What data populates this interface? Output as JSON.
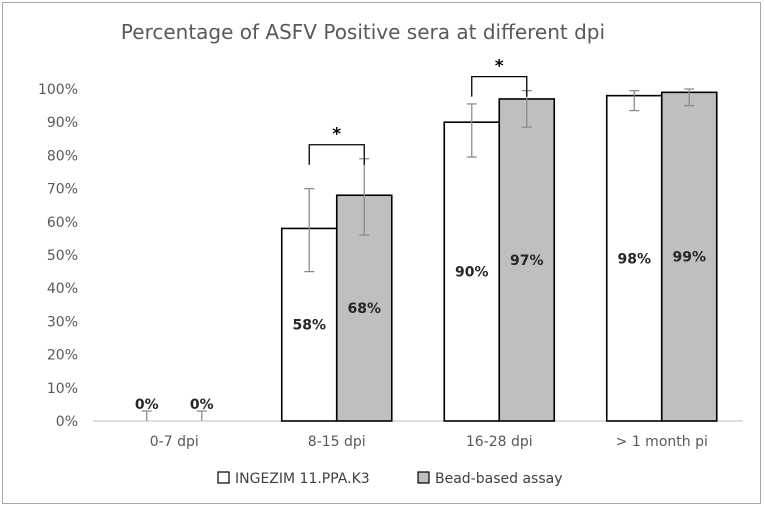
{
  "chart_data": {
    "type": "bar",
    "title": "Percentage of ASFV Positive sera at different dpi",
    "categories": [
      "0-7 dpi",
      "8-15 dpi",
      "16-28 dpi",
      "> 1 month pi"
    ],
    "series": [
      {
        "name": "INGEZIM 11.PPA.K3",
        "color": "#ffffff",
        "values": [
          0,
          58,
          90,
          98
        ],
        "labels": [
          "0%",
          "58%",
          "90%",
          "98%"
        ],
        "error_low": [
          0,
          45,
          79.5,
          93.5
        ],
        "error_high": [
          3,
          70,
          95.5,
          99.5
        ]
      },
      {
        "name": "Bead-based assay",
        "color": "#bfbfbf",
        "values": [
          0,
          68,
          97,
          99
        ],
        "labels": [
          "0%",
          "68%",
          "97%",
          "99%"
        ],
        "error_low": [
          0,
          56,
          88.5,
          95
        ],
        "error_high": [
          3,
          79,
          99.5,
          100
        ]
      }
    ],
    "y_ticks": [
      "0%",
      "10%",
      "20%",
      "30%",
      "40%",
      "50%",
      "60%",
      "70%",
      "80%",
      "90%",
      "100%"
    ],
    "ylim": [
      0,
      100
    ],
    "xlabel": "",
    "ylabel": "",
    "legend_position": "bottom",
    "significance": [
      {
        "category_index": 1,
        "symbol": "*"
      },
      {
        "category_index": 2,
        "symbol": "*"
      }
    ]
  }
}
